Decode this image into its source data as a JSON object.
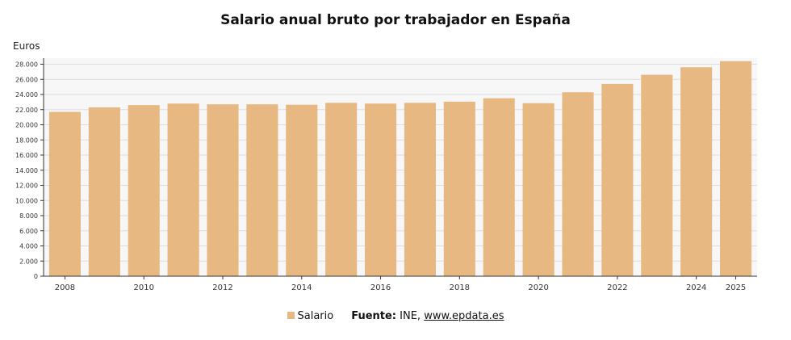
{
  "chart_data": {
    "type": "bar",
    "title": "Salario anual bruto por trabajador en España",
    "ylabel": "Euros",
    "xlabel": "",
    "categories": [
      "2008",
      "2009",
      "2010",
      "2011",
      "2012",
      "2013",
      "2014",
      "2015",
      "2016",
      "2017",
      "2018",
      "2019",
      "2020",
      "2021",
      "2022",
      "2023",
      "2024",
      "2025"
    ],
    "series": [
      {
        "name": "Salario",
        "color": "#e8b882",
        "values": [
          21700,
          22300,
          22600,
          22800,
          22700,
          22700,
          22650,
          22900,
          22800,
          22900,
          23050,
          23500,
          22850,
          24300,
          25400,
          26600,
          27600,
          28400
        ]
      }
    ],
    "ylim": [
      0,
      28800
    ],
    "yticks": [
      0,
      2000,
      4000,
      6000,
      8000,
      10000,
      12000,
      14000,
      16000,
      18000,
      20000,
      22000,
      24000,
      26000,
      28000
    ],
    "ytick_labels": [
      "0",
      "2.000",
      "4.000",
      "6.000",
      "8.000",
      "10.000",
      "12.000",
      "14.000",
      "16.000",
      "18.000",
      "20.000",
      "22.000",
      "24.000",
      "26.000",
      "28.000"
    ],
    "xtick_labels": [
      "2008",
      "2010",
      "2012",
      "2014",
      "2016",
      "2018",
      "2020",
      "2022",
      "2024",
      "2025"
    ],
    "grid": true,
    "legend_position": "bottom"
  },
  "footer": {
    "legend_label": "Salario",
    "source_label": "Fuente:",
    "source_text": "INE, ",
    "source_link": "www.epdata.es"
  }
}
